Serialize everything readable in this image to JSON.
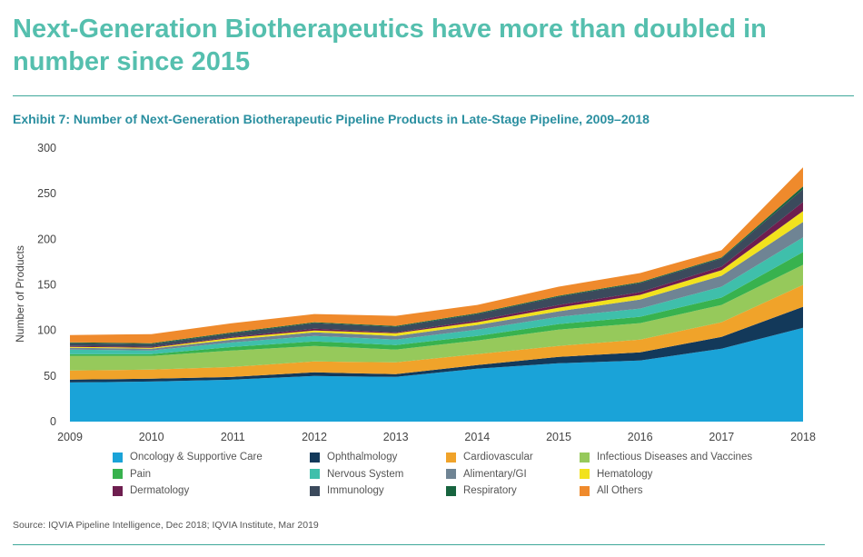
{
  "headline": "Next-Generation Biotherapeutics have more than doubled in number since 2015",
  "chart_data": {
    "type": "area",
    "stacked": true,
    "title": "Exhibit 7: Number of Next-Generation Biotherapeutic Pipeline Products in Late-Stage Pipeline, 2009–2018",
    "xlabel": "",
    "ylabel": "Number of Products",
    "ylim": [
      0,
      300
    ],
    "yticks": [
      0,
      50,
      100,
      150,
      200,
      250,
      300
    ],
    "categories": [
      "2009",
      "2010",
      "2011",
      "2012",
      "2013",
      "2014",
      "2015",
      "2016",
      "2017",
      "2018"
    ],
    "series": [
      {
        "name": "Oncology & Supportive Care",
        "color": "#1aa3d8",
        "values": [
          43,
          44,
          46,
          50,
          49,
          58,
          64,
          67,
          80,
          103
        ]
      },
      {
        "name": "Ophthalmology",
        "color": "#13395a",
        "values": [
          3,
          3,
          3,
          4,
          3,
          4,
          7,
          9,
          13,
          23
        ]
      },
      {
        "name": "Cardiovascular",
        "color": "#f0a32a",
        "values": [
          10,
          10,
          11,
          12,
          13,
          12,
          12,
          14,
          16,
          24
        ]
      },
      {
        "name": "Infectious Diseases and Vaccines",
        "color": "#96c95b",
        "values": [
          16,
          15,
          18,
          17,
          14,
          15,
          18,
          18,
          19,
          22
        ]
      },
      {
        "name": "Pain",
        "color": "#38b24e",
        "values": [
          2,
          2,
          4,
          5,
          5,
          5,
          6,
          7,
          8,
          14
        ]
      },
      {
        "name": "Nervous System",
        "color": "#3fbfab",
        "values": [
          5,
          4,
          5,
          6,
          6,
          7,
          8,
          9,
          12,
          16
        ]
      },
      {
        "name": "Alimentary/GI",
        "color": "#6f8494",
        "values": [
          2,
          2,
          3,
          4,
          4,
          5,
          6,
          10,
          12,
          17
        ]
      },
      {
        "name": "Hematology",
        "color": "#f2e21d",
        "values": [
          1,
          1,
          2,
          2,
          3,
          3,
          4,
          5,
          6,
          12
        ]
      },
      {
        "name": "Dermatology",
        "color": "#6e1e4f",
        "values": [
          1,
          1,
          1,
          2,
          1,
          2,
          3,
          3,
          4,
          10
        ]
      },
      {
        "name": "Immunology",
        "color": "#3b4a5c",
        "values": [
          3,
          3,
          4,
          6,
          6,
          7,
          9,
          10,
          9,
          14
        ]
      },
      {
        "name": "Respiratory",
        "color": "#17643f",
        "values": [
          1,
          1,
          1,
          1,
          1,
          1,
          1,
          1,
          1,
          3
        ]
      },
      {
        "name": "All Others",
        "color": "#ef8a2c",
        "values": [
          8,
          10,
          10,
          9,
          11,
          9,
          10,
          10,
          8,
          21
        ]
      }
    ]
  },
  "source": "Source: IQVIA Pipeline Intelligence, Dec 2018; IQVIA Institute, Mar 2019"
}
